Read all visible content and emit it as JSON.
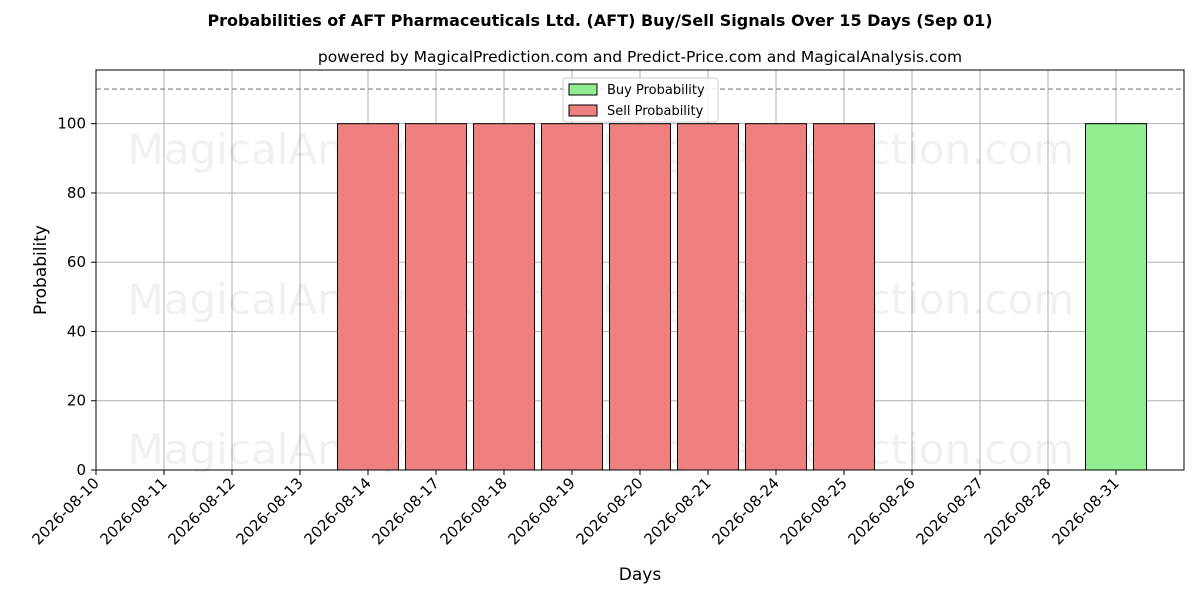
{
  "chart_data": {
    "type": "bar",
    "title": "Probabilities of AFT Pharmaceuticals Ltd. (AFT) Buy/Sell Signals Over 15 Days (Sep 01)",
    "subtitle": "powered by MagicalPrediction.com and Predict-Price.com and MagicalAnalysis.com",
    "xlabel": "Days",
    "ylabel": "Probability",
    "ylim": [
      0,
      115.5
    ],
    "yticks": [
      0,
      20,
      40,
      60,
      80,
      100
    ],
    "reference_line": 110,
    "grid": true,
    "legend_position": "top-center",
    "categories": [
      "2026-08-10",
      "2026-08-11",
      "2026-08-12",
      "2026-08-13",
      "2026-08-14",
      "2026-08-17",
      "2026-08-18",
      "2026-08-19",
      "2026-08-20",
      "2026-08-21",
      "2026-08-24",
      "2026-08-25",
      "2026-08-26",
      "2026-08-27",
      "2026-08-28",
      "2026-08-31"
    ],
    "series": [
      {
        "name": "Buy Probability",
        "color": "#90ee90",
        "values": [
          0,
          0,
          0,
          0,
          0,
          0,
          0,
          0,
          0,
          0,
          0,
          0,
          0,
          0,
          0,
          100
        ]
      },
      {
        "name": "Sell Probability",
        "color": "#f08080",
        "values": [
          0,
          0,
          0,
          0,
          100,
          100,
          100,
          100,
          100,
          100,
          100,
          100,
          0,
          0,
          0,
          0
        ]
      }
    ],
    "watermarks": [
      "MagicalAnalysis.com",
      "MagicalPrediction.com"
    ]
  }
}
